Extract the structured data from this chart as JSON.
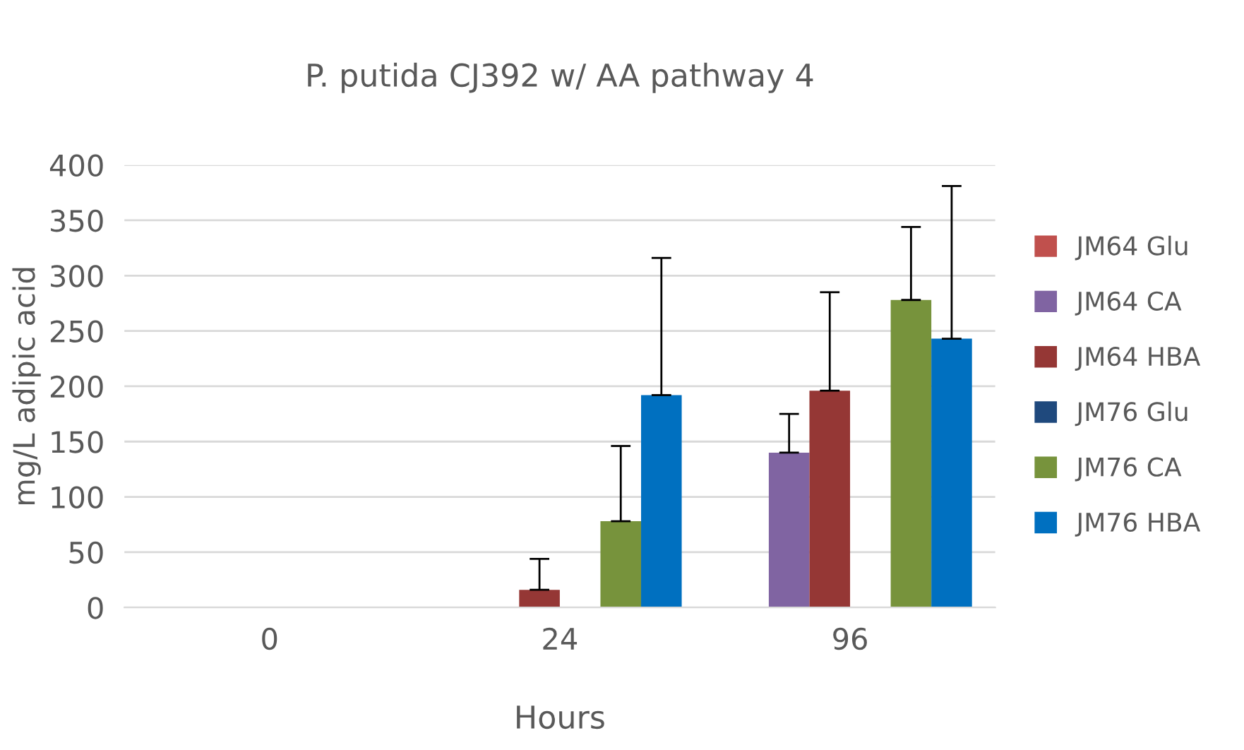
{
  "chart_data": {
    "type": "bar",
    "title": "P. putida CJ392 w/ AA pathway 4",
    "xlabel": "Hours",
    "ylabel": "mg/L adipic acid",
    "categories": [
      "0",
      "24",
      "96"
    ],
    "series": [
      {
        "name": "JM64 Glu",
        "color": "#c0504d",
        "values": [
          0,
          0,
          0
        ]
      },
      {
        "name": "JM64 CA",
        "color": "#8064a2",
        "values": [
          0,
          0,
          140
        ],
        "errors": [
          null,
          null,
          [
            140,
            175
          ]
        ]
      },
      {
        "name": "JM64 HBA",
        "color": "#953735",
        "values": [
          0,
          16,
          196
        ],
        "errors": [
          null,
          [
            16,
            44
          ],
          [
            196,
            285
          ]
        ]
      },
      {
        "name": "JM76 Glu",
        "color": "#1f497d",
        "values": [
          0,
          0,
          0
        ]
      },
      {
        "name": "JM76 CA",
        "color": "#77933c",
        "values": [
          0,
          78,
          278
        ],
        "errors": [
          null,
          [
            78,
            146
          ],
          [
            278,
            344
          ]
        ]
      },
      {
        "name": "JM76 HBA",
        "color": "#0070c0",
        "values": [
          0,
          192,
          243
        ],
        "errors": [
          null,
          [
            192,
            316
          ],
          [
            243,
            381
          ]
        ]
      }
    ],
    "ylim": [
      0,
      400
    ],
    "yticks": [
      0,
      50,
      100,
      150,
      200,
      250,
      300,
      350,
      400
    ],
    "grid": "y",
    "legend": "right"
  }
}
